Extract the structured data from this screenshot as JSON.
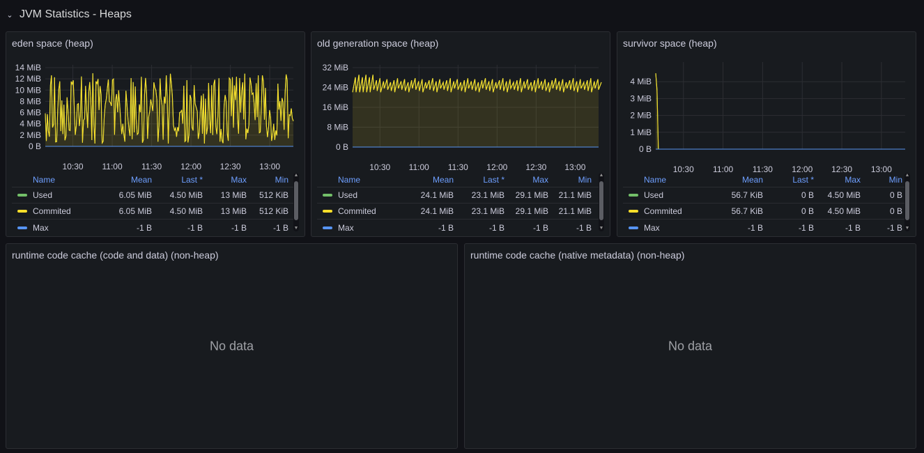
{
  "row": {
    "title": "JVM Statistics - Heaps",
    "chevron_icon": "chevron-down-icon"
  },
  "colors": {
    "used": "#73bf69",
    "commited": "#fade2a",
    "max": "#5794f2",
    "header": "#6e9fff"
  },
  "legend_headers": {
    "name": "Name",
    "mean": "Mean",
    "last": "Last *",
    "max": "Max",
    "min": "Min"
  },
  "panels": {
    "eden": {
      "title": "eden space (heap)",
      "rows": [
        {
          "name": "Used",
          "mean": "6.05 MiB",
          "last": "4.50 MiB",
          "max": "13 MiB",
          "min": "512 KiB"
        },
        {
          "name": "Commited",
          "mean": "6.05 MiB",
          "last": "4.50 MiB",
          "max": "13 MiB",
          "min": "512 KiB"
        },
        {
          "name": "Max",
          "mean": "-1 B",
          "last": "-1 B",
          "max": "-1 B",
          "min": "-1 B"
        }
      ]
    },
    "old": {
      "title": "old generation space (heap)",
      "rows": [
        {
          "name": "Used",
          "mean": "24.1 MiB",
          "last": "23.1 MiB",
          "max": "29.1 MiB",
          "min": "21.1 MiB"
        },
        {
          "name": "Commited",
          "mean": "24.1 MiB",
          "last": "23.1 MiB",
          "max": "29.1 MiB",
          "min": "21.1 MiB"
        },
        {
          "name": "Max",
          "mean": "-1 B",
          "last": "-1 B",
          "max": "-1 B",
          "min": "-1 B"
        }
      ]
    },
    "survivor": {
      "title": "survivor space (heap)",
      "rows": [
        {
          "name": "Used",
          "mean": "56.7 KiB",
          "last": "0 B",
          "max": "4.50 MiB",
          "min": "0 B"
        },
        {
          "name": "Commited",
          "mean": "56.7 KiB",
          "last": "0 B",
          "max": "4.50 MiB",
          "min": "0 B"
        },
        {
          "name": "Max",
          "mean": "-1 B",
          "last": "-1 B",
          "max": "-1 B",
          "min": "-1 B"
        }
      ]
    },
    "codecache": {
      "title": "runtime code cache (code and data) (non-heap)",
      "empty_text": "No data"
    },
    "metaspace": {
      "title": "runtime code cache (native metadata) (non-heap)",
      "empty_text": "No data"
    }
  },
  "chart_data": [
    {
      "type": "line",
      "title": "eden space (heap)",
      "x_ticks": [
        "10:30",
        "11:00",
        "11:30",
        "12:00",
        "12:30",
        "13:00"
      ],
      "y_ticks": [
        "0 B",
        "2 MiB",
        "4 MiB",
        "6 MiB",
        "8 MiB",
        "10 MiB",
        "12 MiB",
        "14 MiB"
      ],
      "ylim": [
        0,
        14
      ],
      "x_range": [
        "10:09",
        "13:18"
      ],
      "y_unit": "MiB",
      "grid": true,
      "series": [
        {
          "name": "Used",
          "pattern": "noisy",
          "mean": 6.05,
          "min": 0.5,
          "max": 13,
          "last": 4.5
        },
        {
          "name": "Commited",
          "pattern": "noisy",
          "mean": 6.05,
          "min": 0.5,
          "max": 13,
          "last": 4.5
        },
        {
          "name": "Max",
          "pattern": "flat",
          "value": 0
        }
      ]
    },
    {
      "type": "line",
      "title": "old generation space (heap)",
      "x_ticks": [
        "10:30",
        "11:00",
        "11:30",
        "12:00",
        "12:30",
        "13:00"
      ],
      "y_ticks": [
        "0 B",
        "8 MiB",
        "16 MiB",
        "24 MiB",
        "32 MiB"
      ],
      "ylim": [
        0,
        32
      ],
      "x_range": [
        "10:09",
        "13:18"
      ],
      "y_unit": "MiB",
      "grid": true,
      "series": [
        {
          "name": "Used",
          "pattern": "sawtooth",
          "mean": 24.1,
          "min": 21.1,
          "max": 29.1,
          "last": 23.1
        },
        {
          "name": "Commited",
          "pattern": "sawtooth",
          "mean": 24.1,
          "min": 21.1,
          "max": 29.1,
          "last": 23.1
        },
        {
          "name": "Max",
          "pattern": "flat",
          "value": 0
        }
      ]
    },
    {
      "type": "line",
      "title": "survivor space (heap)",
      "x_ticks": [
        "10:30",
        "11:00",
        "11:30",
        "12:00",
        "12:30",
        "13:00"
      ],
      "y_ticks": [
        "0 B",
        "1 MiB",
        "2 MiB",
        "3 MiB",
        "4 MiB"
      ],
      "ylim": [
        0,
        5
      ],
      "x_range": [
        "10:09",
        "13:18"
      ],
      "y_unit": "MiB",
      "grid": true,
      "series": [
        {
          "name": "Used",
          "pattern": "drop",
          "points": [
            [
              "10:09",
              4.5
            ],
            [
              "10:10",
              3.5
            ],
            [
              "10:11",
              0
            ],
            [
              "13:18",
              0
            ]
          ]
        },
        {
          "name": "Commited",
          "pattern": "drop",
          "points": [
            [
              "10:09",
              4.5
            ],
            [
              "10:10",
              3.5
            ],
            [
              "10:11",
              0
            ],
            [
              "13:18",
              0
            ]
          ]
        },
        {
          "name": "Max",
          "pattern": "flat",
          "value": 0
        }
      ]
    }
  ]
}
